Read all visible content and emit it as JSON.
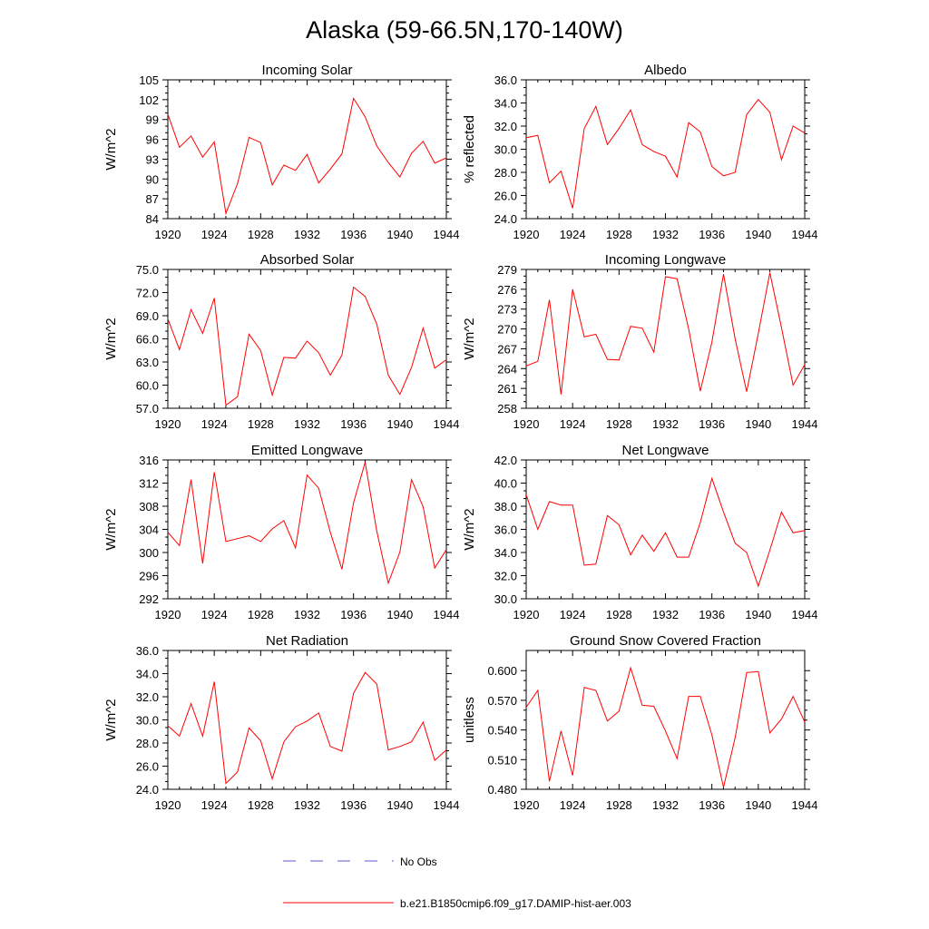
{
  "page": {
    "title": "Alaska (59-66.5N,170-140W)"
  },
  "legend": {
    "items": [
      {
        "label": "No Obs",
        "color": "#5a5acc",
        "style": "dashed"
      },
      {
        "label": "b.e21.B1850cmip6.f09_g17.DAMIP-hist-aer.003",
        "color": "#ff0000",
        "style": "solid"
      }
    ]
  },
  "chart_data": [
    {
      "type": "line",
      "title": "Incoming Solar",
      "xlabel": "",
      "ylabel": "W/m^2",
      "xlim": [
        1920,
        1944
      ],
      "ylim": [
        84,
        105
      ],
      "xticks": [
        1920,
        1924,
        1928,
        1932,
        1936,
        1940,
        1944
      ],
      "xtick_labels": [
        "1920",
        "1924",
        "1928",
        "1932",
        "1936",
        "1940",
        "1944"
      ],
      "yticks": [
        84,
        87,
        90,
        93,
        96,
        99,
        102,
        105
      ],
      "ytick_labels": [
        "84",
        "87",
        "90",
        "93",
        "96",
        "99",
        "102",
        "105"
      ],
      "x": [
        1920,
        1921,
        1922,
        1923,
        1924,
        1925,
        1926,
        1927,
        1928,
        1929,
        1930,
        1931,
        1932,
        1933,
        1934,
        1935,
        1936,
        1937,
        1938,
        1939,
        1940,
        1941,
        1942,
        1943,
        1944
      ],
      "series": [
        {
          "name": "b.e21.B1850cmip6.f09_g17.DAMIP-hist-aer.003",
          "color": "#ff0000",
          "values": [
            99.8,
            94.8,
            96.5,
            93.3,
            95.6,
            84.8,
            89.3,
            96.3,
            95.5,
            89.1,
            92.1,
            91.3,
            93.7,
            89.4,
            91.5,
            93.8,
            102.2,
            99.4,
            95.0,
            92.5,
            90.3,
            93.9,
            95.7,
            92.4,
            93.2
          ]
        }
      ]
    },
    {
      "type": "line",
      "title": "Albedo",
      "xlabel": "",
      "ylabel": "% reflected",
      "xlim": [
        1920,
        1944
      ],
      "ylim": [
        24,
        36
      ],
      "xticks": [
        1920,
        1924,
        1928,
        1932,
        1936,
        1940,
        1944
      ],
      "xtick_labels": [
        "1920",
        "1924",
        "1928",
        "1932",
        "1936",
        "1940",
        "1944"
      ],
      "yticks": [
        24,
        26,
        28,
        30,
        32,
        34,
        36
      ],
      "ytick_labels": [
        "24.0",
        "26.0",
        "28.0",
        "30.0",
        "32.0",
        "34.0",
        "36.0"
      ],
      "x": [
        1920,
        1921,
        1922,
        1923,
        1924,
        1925,
        1926,
        1927,
        1928,
        1929,
        1930,
        1931,
        1932,
        1933,
        1934,
        1935,
        1936,
        1937,
        1938,
        1939,
        1940,
        1941,
        1942,
        1943,
        1944
      ],
      "series": [
        {
          "name": "b.e21.B1850cmip6.f09_g17.DAMIP-hist-aer.003",
          "color": "#ff0000",
          "values": [
            31.0,
            31.2,
            27.1,
            28.1,
            24.9,
            31.8,
            33.7,
            30.4,
            31.8,
            33.4,
            30.4,
            29.8,
            29.4,
            27.6,
            32.3,
            31.5,
            28.5,
            27.7,
            28.0,
            33.0,
            34.3,
            33.2,
            29.1,
            32.0,
            31.4
          ]
        }
      ]
    },
    {
      "type": "line",
      "title": "Absorbed Solar",
      "xlabel": "",
      "ylabel": "W/m^2",
      "xlim": [
        1920,
        1944
      ],
      "ylim": [
        57,
        75
      ],
      "xticks": [
        1920,
        1924,
        1928,
        1932,
        1936,
        1940,
        1944
      ],
      "xtick_labels": [
        "1920",
        "1924",
        "1928",
        "1932",
        "1936",
        "1940",
        "1944"
      ],
      "yticks": [
        57,
        60,
        63,
        66,
        69,
        72,
        75
      ],
      "ytick_labels": [
        "57.0",
        "60.0",
        "63.0",
        "66.0",
        "69.0",
        "72.0",
        "75.0"
      ],
      "x": [
        1920,
        1921,
        1922,
        1923,
        1924,
        1925,
        1926,
        1927,
        1928,
        1929,
        1930,
        1931,
        1932,
        1933,
        1934,
        1935,
        1936,
        1937,
        1938,
        1939,
        1940,
        1941,
        1942,
        1943,
        1944
      ],
      "series": [
        {
          "name": "b.e21.B1850cmip6.f09_g17.DAMIP-hist-aer.003",
          "color": "#ff0000",
          "values": [
            68.6,
            64.6,
            69.8,
            66.7,
            71.3,
            57.4,
            58.5,
            66.6,
            64.5,
            58.7,
            63.6,
            63.5,
            65.7,
            64.2,
            61.3,
            63.9,
            72.7,
            71.5,
            67.9,
            61.3,
            58.8,
            62.3,
            67.4,
            62.2,
            63.3
          ]
        }
      ]
    },
    {
      "type": "line",
      "title": "Incoming Longwave",
      "xlabel": "",
      "ylabel": "W/m^2",
      "xlim": [
        1920,
        1944
      ],
      "ylim": [
        258,
        279
      ],
      "xticks": [
        1920,
        1924,
        1928,
        1932,
        1936,
        1940,
        1944
      ],
      "xtick_labels": [
        "1920",
        "1924",
        "1928",
        "1932",
        "1936",
        "1940",
        "1944"
      ],
      "yticks": [
        258,
        261,
        264,
        267,
        270,
        273,
        276,
        279
      ],
      "ytick_labels": [
        "258",
        "261",
        "264",
        "267",
        "270",
        "273",
        "276",
        "279"
      ],
      "x": [
        1920,
        1921,
        1922,
        1923,
        1924,
        1925,
        1926,
        1927,
        1928,
        1929,
        1930,
        1931,
        1932,
        1933,
        1934,
        1935,
        1936,
        1937,
        1938,
        1939,
        1940,
        1941,
        1942,
        1943,
        1944
      ],
      "series": [
        {
          "name": "b.e21.B1850cmip6.f09_g17.DAMIP-hist-aer.003",
          "color": "#ff0000",
          "values": [
            264.4,
            265.1,
            274.4,
            260.1,
            276.0,
            268.8,
            269.2,
            265.4,
            265.3,
            270.4,
            270.1,
            266.5,
            277.9,
            277.6,
            270.0,
            260.6,
            268.0,
            278.3,
            268.5,
            260.5,
            269.3,
            278.5,
            270.2,
            261.5,
            264.6
          ]
        }
      ]
    },
    {
      "type": "line",
      "title": "Emitted Longwave",
      "xlabel": "",
      "ylabel": "W/m^2",
      "xlim": [
        1920,
        1944
      ],
      "ylim": [
        292,
        316
      ],
      "xticks": [
        1920,
        1924,
        1928,
        1932,
        1936,
        1940,
        1944
      ],
      "xtick_labels": [
        "1920",
        "1924",
        "1928",
        "1932",
        "1936",
        "1940",
        "1944"
      ],
      "yticks": [
        292,
        296,
        300,
        304,
        308,
        312,
        316
      ],
      "ytick_labels": [
        "292",
        "296",
        "300",
        "304",
        "308",
        "312",
        "316"
      ],
      "x": [
        1920,
        1921,
        1922,
        1923,
        1924,
        1925,
        1926,
        1927,
        1928,
        1929,
        1930,
        1931,
        1932,
        1933,
        1934,
        1935,
        1936,
        1937,
        1938,
        1939,
        1940,
        1941,
        1942,
        1943,
        1944
      ],
      "series": [
        {
          "name": "b.e21.B1850cmip6.f09_g17.DAMIP-hist-aer.003",
          "color": "#ff0000",
          "values": [
            303.5,
            301.2,
            312.6,
            298.1,
            313.9,
            301.9,
            302.4,
            302.9,
            301.9,
            304.1,
            305.5,
            300.8,
            313.4,
            311.1,
            303.5,
            297.1,
            308.6,
            315.6,
            303.7,
            294.7,
            300.1,
            312.6,
            307.9,
            297.3,
            300.5
          ]
        }
      ]
    },
    {
      "type": "line",
      "title": "Net Longwave",
      "xlabel": "",
      "ylabel": "W/m^2",
      "xlim": [
        1920,
        1944
      ],
      "ylim": [
        30,
        42
      ],
      "xticks": [
        1920,
        1924,
        1928,
        1932,
        1936,
        1940,
        1944
      ],
      "xtick_labels": [
        "1920",
        "1924",
        "1928",
        "1932",
        "1936",
        "1940",
        "1944"
      ],
      "yticks": [
        30,
        32,
        34,
        36,
        38,
        40,
        42
      ],
      "ytick_labels": [
        "30.0",
        "32.0",
        "34.0",
        "36.0",
        "38.0",
        "40.0",
        "42.0"
      ],
      "x": [
        1920,
        1921,
        1922,
        1923,
        1924,
        1925,
        1926,
        1927,
        1928,
        1929,
        1930,
        1931,
        1932,
        1933,
        1934,
        1935,
        1936,
        1937,
        1938,
        1939,
        1940,
        1941,
        1942,
        1943,
        1944
      ],
      "series": [
        {
          "name": "b.e21.B1850cmip6.f09_g17.DAMIP-hist-aer.003",
          "color": "#ff0000",
          "values": [
            39.0,
            36.0,
            38.4,
            38.1,
            38.1,
            32.9,
            33.0,
            37.2,
            36.4,
            33.8,
            35.5,
            34.1,
            35.7,
            33.6,
            33.6,
            36.6,
            40.4,
            37.5,
            34.8,
            34.0,
            31.1,
            34.2,
            37.5,
            35.7,
            35.9
          ]
        }
      ]
    },
    {
      "type": "line",
      "title": "Net Radiation",
      "xlabel": "",
      "ylabel": "W/m^2",
      "xlim": [
        1920,
        1944
      ],
      "ylim": [
        24,
        36
      ],
      "xticks": [
        1920,
        1924,
        1928,
        1932,
        1936,
        1940,
        1944
      ],
      "xtick_labels": [
        "1920",
        "1924",
        "1928",
        "1932",
        "1936",
        "1940",
        "1944"
      ],
      "yticks": [
        24,
        26,
        28,
        30,
        32,
        34,
        36
      ],
      "ytick_labels": [
        "24.0",
        "26.0",
        "28.0",
        "30.0",
        "32.0",
        "34.0",
        "36.0"
      ],
      "x": [
        1920,
        1921,
        1922,
        1923,
        1924,
        1925,
        1926,
        1927,
        1928,
        1929,
        1930,
        1931,
        1932,
        1933,
        1934,
        1935,
        1936,
        1937,
        1938,
        1939,
        1940,
        1941,
        1942,
        1943,
        1944
      ],
      "series": [
        {
          "name": "b.e21.B1850cmip6.f09_g17.DAMIP-hist-aer.003",
          "color": "#ff0000",
          "values": [
            29.5,
            28.6,
            31.4,
            28.6,
            33.3,
            24.5,
            25.5,
            29.3,
            28.2,
            24.9,
            28.1,
            29.4,
            29.9,
            30.6,
            27.7,
            27.3,
            32.3,
            34.1,
            33.1,
            27.4,
            27.7,
            28.1,
            29.8,
            26.5,
            27.4
          ]
        }
      ]
    },
    {
      "type": "line",
      "title": "Ground Snow Covered Fraction",
      "xlabel": "",
      "ylabel": "unitless",
      "xlim": [
        1920,
        1944
      ],
      "ylim": [
        0.48,
        0.6204
      ],
      "xticks": [
        1920,
        1924,
        1928,
        1932,
        1936,
        1940,
        1944
      ],
      "xtick_labels": [
        "1920",
        "1924",
        "1928",
        "1932",
        "1936",
        "1940",
        "1944"
      ],
      "yticks": [
        0.48,
        0.51,
        0.54,
        0.57,
        0.6
      ],
      "ytick_labels": [
        "0.480",
        "0.510",
        "0.540",
        "0.570",
        "0.600"
      ],
      "x": [
        1920,
        1921,
        1922,
        1923,
        1924,
        1925,
        1926,
        1927,
        1928,
        1929,
        1930,
        1931,
        1932,
        1933,
        1934,
        1935,
        1936,
        1937,
        1938,
        1939,
        1940,
        1941,
        1942,
        1943,
        1944
      ],
      "series": [
        {
          "name": "b.e21.B1850cmip6.f09_g17.DAMIP-hist-aer.003",
          "color": "#ff0000",
          "values": [
            0.563,
            0.58,
            0.488,
            0.539,
            0.494,
            0.583,
            0.58,
            0.549,
            0.559,
            0.603,
            0.565,
            0.564,
            0.539,
            0.511,
            0.574,
            0.574,
            0.535,
            0.482,
            0.532,
            0.598,
            0.599,
            0.537,
            0.551,
            0.574,
            0.548
          ]
        }
      ]
    }
  ]
}
